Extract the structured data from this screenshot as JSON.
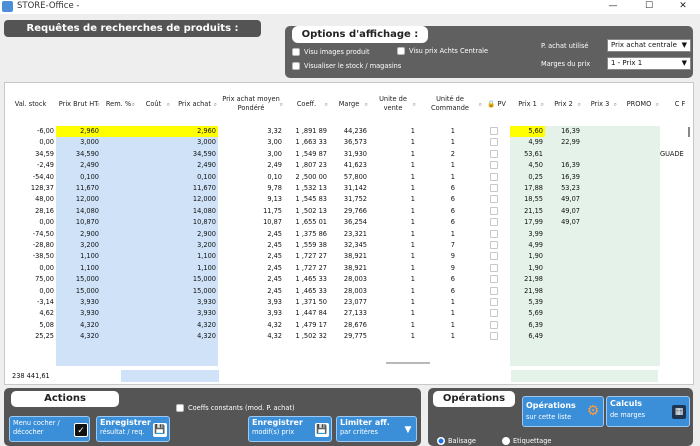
{
  "window": {
    "title": "STORE-Office -",
    "minimize": "—",
    "maximize": "☐",
    "close": "✕",
    "icon": "app-icon"
  },
  "header": {
    "title": "Requêtes de recherches de produits :"
  },
  "options": {
    "title": "Options d'affichage :",
    "visu_images": "Visu images produit",
    "visu_prix_achts": "Visu prix Achts Centrale",
    "visualiser_stock": "Visualiser le stock / magasins",
    "p_achat_label": "P. achat utilisé",
    "p_achat_value": "Prix achat centrale",
    "marges_label": "Marges du prix",
    "marges_value": "1 - Prix 1"
  },
  "columns": [
    {
      "label": "Val. stock"
    },
    {
      "label": "Prix Brut HT"
    },
    {
      "label": "Rem. %"
    },
    {
      "label": "Coût"
    },
    {
      "label": "Prix achat"
    },
    {
      "label": "Prix achat moyen Pondéré"
    },
    {
      "label": "Coeff."
    },
    {
      "label": "Marge"
    },
    {
      "label": "Unite de vente"
    },
    {
      "label": "Unité de Commande"
    },
    {
      "label": "PV"
    },
    {
      "label": "Prix 1"
    },
    {
      "label": "Prix 2"
    },
    {
      "label": "Prix 3"
    },
    {
      "label": "PROMO"
    },
    {
      "label": "C F"
    }
  ],
  "rows": [
    {
      "val": "-6,00",
      "brut": "2,960",
      "rem": "",
      "cout": "",
      "achat": "2,960",
      "pmp": "3,32",
      "coeff": "1 ,891 89",
      "marge": "44,236",
      "uv": "1",
      "uc": "1",
      "p1": "5,60",
      "p2": "16,39",
      "p3": "",
      "promo": "",
      "last": "",
      "hl": true
    },
    {
      "val": "0,00",
      "brut": "3,000",
      "rem": "",
      "cout": "",
      "achat": "3,000",
      "pmp": "3,00",
      "coeff": "1 ,663 33",
      "marge": "36,573",
      "uv": "1",
      "uc": "1",
      "p1": "4,99",
      "p2": "22,99",
      "p3": "",
      "promo": "",
      "last": ""
    },
    {
      "val": "34,59",
      "brut": "34,590",
      "rem": "",
      "cout": "",
      "achat": "34,590",
      "pmp": "3,00",
      "coeff": "1 ,549 87",
      "marge": "31,930",
      "uv": "1",
      "uc": "2",
      "p1": "53,61",
      "p2": "",
      "p3": "",
      "promo": "",
      "last": "GUADE"
    },
    {
      "val": "-2,49",
      "brut": "2,490",
      "rem": "",
      "cout": "",
      "achat": "2,490",
      "pmp": "2,49",
      "coeff": "1 ,807 23",
      "marge": "41,623",
      "uv": "1",
      "uc": "1",
      "p1": "4,50",
      "p2": "16,39",
      "p3": "",
      "promo": "",
      "last": ""
    },
    {
      "val": "-54,40",
      "brut": "0,100",
      "rem": "",
      "cout": "",
      "achat": "0,100",
      "pmp": "0,10",
      "coeff": "2 ,500 00",
      "marge": "57,800",
      "uv": "1",
      "uc": "1",
      "p1": "0,25",
      "p2": "16,39",
      "p3": "",
      "promo": "",
      "last": ""
    },
    {
      "val": "128,37",
      "brut": "11,670",
      "rem": "",
      "cout": "",
      "achat": "11,670",
      "pmp": "9,78",
      "coeff": "1 ,532 13",
      "marge": "31,142",
      "uv": "1",
      "uc": "6",
      "p1": "17,88",
      "p2": "53,23",
      "p3": "",
      "promo": "",
      "last": ""
    },
    {
      "val": "48,00",
      "brut": "12,000",
      "rem": "",
      "cout": "",
      "achat": "12,000",
      "pmp": "9,13",
      "coeff": "1 ,545 83",
      "marge": "31,752",
      "uv": "1",
      "uc": "6",
      "p1": "18,55",
      "p2": "49,07",
      "p3": "",
      "promo": "",
      "last": ""
    },
    {
      "val": "28,16",
      "brut": "14,080",
      "rem": "",
      "cout": "",
      "achat": "14,080",
      "pmp": "11,75",
      "coeff": "1 ,502 13",
      "marge": "29,766",
      "uv": "1",
      "uc": "6",
      "p1": "21,15",
      "p2": "49,07",
      "p3": "",
      "promo": "",
      "last": ""
    },
    {
      "val": "0,00",
      "brut": "10,870",
      "rem": "",
      "cout": "",
      "achat": "10,870",
      "pmp": "10,87",
      "coeff": "1 ,655 01",
      "marge": "36,254",
      "uv": "1",
      "uc": "6",
      "p1": "17,99",
      "p2": "49,07",
      "p3": "",
      "promo": "",
      "last": ""
    },
    {
      "val": "-74,50",
      "brut": "2,900",
      "rem": "",
      "cout": "",
      "achat": "2,900",
      "pmp": "2,45",
      "coeff": "1 ,375 86",
      "marge": "23,321",
      "uv": "1",
      "uc": "1",
      "p1": "3,99",
      "p2": "",
      "p3": "",
      "promo": "",
      "last": ""
    },
    {
      "val": "-28,80",
      "brut": "3,200",
      "rem": "",
      "cout": "",
      "achat": "3,200",
      "pmp": "2,45",
      "coeff": "1 ,559 38",
      "marge": "32,345",
      "uv": "1",
      "uc": "7",
      "p1": "4,99",
      "p2": "",
      "p3": "",
      "promo": "",
      "last": ""
    },
    {
      "val": "-38,50",
      "brut": "1,100",
      "rem": "",
      "cout": "",
      "achat": "1,100",
      "pmp": "2,45",
      "coeff": "1 ,727 27",
      "marge": "38,921",
      "uv": "1",
      "uc": "9",
      "p1": "1,90",
      "p2": "",
      "p3": "",
      "promo": "",
      "last": ""
    },
    {
      "val": "0,00",
      "brut": "1,100",
      "rem": "",
      "cout": "",
      "achat": "1,100",
      "pmp": "2,45",
      "coeff": "1 ,727 27",
      "marge": "38,921",
      "uv": "1",
      "uc": "9",
      "p1": "1,90",
      "p2": "",
      "p3": "",
      "promo": "",
      "last": ""
    },
    {
      "val": "75,00",
      "brut": "15,000",
      "rem": "",
      "cout": "",
      "achat": "15,000",
      "pmp": "2,45",
      "coeff": "1 ,465 33",
      "marge": "28,003",
      "uv": "1",
      "uc": "6",
      "p1": "21,98",
      "p2": "",
      "p3": "",
      "promo": "",
      "last": ""
    },
    {
      "val": "0,00",
      "brut": "15,000",
      "rem": "",
      "cout": "",
      "achat": "15,000",
      "pmp": "2,45",
      "coeff": "1 ,465 33",
      "marge": "28,003",
      "uv": "1",
      "uc": "6",
      "p1": "21,98",
      "p2": "",
      "p3": "",
      "promo": "",
      "last": ""
    },
    {
      "val": "-3,14",
      "brut": "3,930",
      "rem": "",
      "cout": "",
      "achat": "3,930",
      "pmp": "3,93",
      "coeff": "1 ,371 50",
      "marge": "23,077",
      "uv": "1",
      "uc": "1",
      "p1": "5,39",
      "p2": "",
      "p3": "",
      "promo": "",
      "last": ""
    },
    {
      "val": "4,62",
      "brut": "3,930",
      "rem": "",
      "cout": "",
      "achat": "3,930",
      "pmp": "3,93",
      "coeff": "1 ,447 84",
      "marge": "27,133",
      "uv": "1",
      "uc": "1",
      "p1": "5,69",
      "p2": "",
      "p3": "",
      "promo": "",
      "last": ""
    },
    {
      "val": "5,08",
      "brut": "4,320",
      "rem": "",
      "cout": "",
      "achat": "4,320",
      "pmp": "4,32",
      "coeff": "1 ,479 17",
      "marge": "28,676",
      "uv": "1",
      "uc": "1",
      "p1": "6,39",
      "p2": "",
      "p3": "",
      "promo": "",
      "last": ""
    },
    {
      "val": "25,25",
      "brut": "4,320",
      "rem": "",
      "cout": "",
      "achat": "4,320",
      "pmp": "4,32",
      "coeff": "1 ,502 32",
      "marge": "29,775",
      "uv": "1",
      "uc": "1",
      "p1": "6,49",
      "p2": "",
      "p3": "",
      "promo": "",
      "last": ""
    }
  ],
  "footer": {
    "total": "238 441,61"
  },
  "actions": {
    "title": "Actions",
    "coeffs_constants": "Coeffs constants (mod. P. achat)",
    "menu_line1": "Menu cocher /",
    "menu_line2": "décocher",
    "enr1_line1": "Enregistrer",
    "enr1_line2": "résultat / req.",
    "enr2_line1": "Enregistrer",
    "enr2_line2": "modif(s) prix",
    "limit_line1": "Limiter aff.",
    "limit_line2": "par critères"
  },
  "operations": {
    "title": "Opérations",
    "ops_line1": "Opérations",
    "ops_line2": "sur cette liste",
    "calc_line1": "Calculs",
    "calc_line2": "de marges",
    "radio_balisage": "Balisage",
    "radio_etiquettage": "Etiquettage"
  },
  "icons": {
    "checkbox": "checkbox-icon",
    "save": "save-icon",
    "filter": "filter-icon",
    "gear": "gear-icon",
    "calculator": "calculator-icon",
    "lock": "lock-icon",
    "search": "search-icon"
  },
  "colors": {
    "highlight": "#ffff00",
    "blue_col": "#cfe2f7",
    "green_col": "#e4f2ea",
    "panel": "#555555",
    "button": "#3a8fd8"
  }
}
